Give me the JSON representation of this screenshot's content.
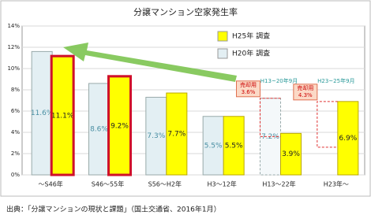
{
  "chart_data": {
    "type": "bar",
    "title": "分譲マンション空家発生率",
    "categories": [
      "～S46年",
      "S46～55年",
      "S56～H2年",
      "H3～12年",
      "H13～22年",
      "H23年～"
    ],
    "series": [
      {
        "name": "H20年 調査",
        "color": "#e3eff3",
        "label_color": "#4a8fa3",
        "values": [
          11.6,
          8.6,
          7.3,
          5.5,
          7.2,
          null
        ],
        "value_labels": [
          "11.6%",
          "8.6%",
          "7.3%",
          "5.5%",
          "7.2%",
          null
        ],
        "dashed_points": [
          4
        ]
      },
      {
        "name": "H25年 調査",
        "color": "#ffff00",
        "label_color": "#222222",
        "values": [
          11.1,
          9.2,
          7.7,
          5.5,
          3.9,
          6.9
        ],
        "value_labels": [
          "11.1%",
          "9.2%",
          "7.7%",
          "5.5%",
          "3.9%",
          "6.9%"
        ]
      }
    ],
    "highlight_categories": [
      0,
      1
    ],
    "annotations": [
      {
        "category": 4,
        "text": "売却用",
        "value": 3.6,
        "label": "3.6%",
        "period": "H13~20年9月"
      },
      {
        "category": 5,
        "text": "売却用",
        "value": 4.3,
        "label": "4.3%",
        "period": "H23~25年9月"
      }
    ],
    "ylim": [
      0,
      14
    ],
    "yticks": [
      {
        "value": 0,
        "label": "0%"
      },
      {
        "value": 2,
        "label": "2%"
      },
      {
        "value": 4,
        "label": "4%"
      },
      {
        "value": 6,
        "label": "6%"
      },
      {
        "value": 8,
        "label": "8%"
      },
      {
        "value": 10,
        "label": "10%"
      },
      {
        "value": 12,
        "label": "12%"
      },
      {
        "value": 14,
        "label": "14%"
      }
    ],
    "grid": true,
    "source": "出典：「分譲マンションの現状と課題」（国土交通省、2016年1月）"
  }
}
